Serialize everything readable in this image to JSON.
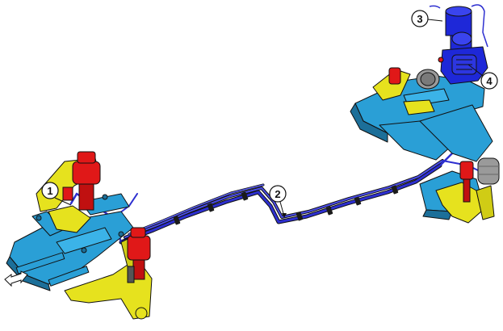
{
  "callouts": [
    {
      "id": "1",
      "label": "1"
    },
    {
      "id": "2",
      "label": "2"
    },
    {
      "id": "3",
      "label": "3"
    },
    {
      "id": "4",
      "label": "4"
    }
  ],
  "colors": {
    "frame": "#2a9fd6",
    "frame_dark": "#1c6f99",
    "control_arm": "#e6e21e",
    "air_spring": "#e01818",
    "air_line": "#2d2fd0",
    "compressor": "#1e28d8",
    "bellows": "#9a9a9a",
    "outline": "#111111"
  },
  "icons": {
    "front_arrow": "double-arrow-icon"
  }
}
